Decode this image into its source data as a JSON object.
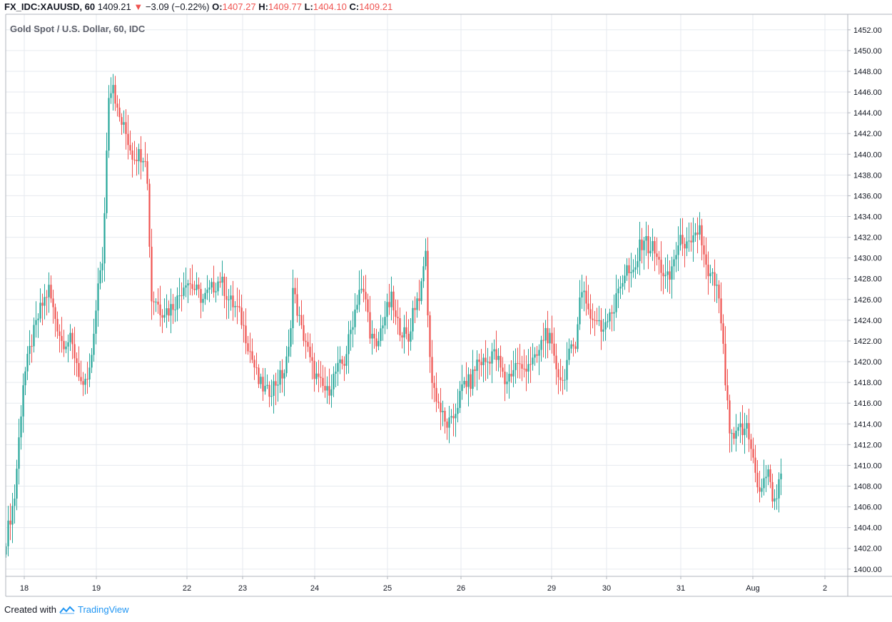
{
  "header": {
    "symbol": "FX_IDC:XAUUSD, 60",
    "last": "1409.21",
    "change": "−3.09 (−0.22%)",
    "o_label": "O:",
    "o_value": "1407.27",
    "h_label": "H:",
    "h_value": "1409.77",
    "l_label": "L:",
    "l_value": "1404.10",
    "c_label": "C:",
    "c_value": "1409.21",
    "down_color": "#ef5350"
  },
  "chart_title": "Gold Spot / U.S. Dollar, 60, IDC",
  "footer": {
    "created_with": "Created with",
    "brand": "TradingView"
  },
  "colors": {
    "up": "#26a69a",
    "down": "#ef5350",
    "grid": "#e6eaef",
    "axis_text": "#131722"
  },
  "chart_data": {
    "type": "candlestick",
    "x_axis_labels": [
      "18",
      "19",
      "22",
      "23",
      "24",
      "25",
      "26",
      "29",
      "30",
      "31",
      "Aug",
      "2"
    ],
    "y_tick_labels": [
      "1400.00",
      "1402.00",
      "1404.00",
      "1406.00",
      "1408.00",
      "1410.00",
      "1412.00",
      "1414.00",
      "1416.00",
      "1418.00",
      "1420.00",
      "1422.00",
      "1424.00",
      "1426.00",
      "1428.00",
      "1430.00",
      "1432.00",
      "1434.00",
      "1436.00",
      "1438.00",
      "1440.00",
      "1442.00",
      "1444.00",
      "1446.00",
      "1448.00",
      "1450.00",
      "1452.00"
    ],
    "ylim": [
      1399.3,
      1453.5
    ],
    "bars_up_to_index": 362,
    "price_path": [
      [
        0,
        1403
      ],
      [
        4,
        1407
      ],
      [
        8,
        1418
      ],
      [
        12,
        1422
      ],
      [
        16,
        1425
      ],
      [
        18,
        1426
      ],
      [
        20,
        1427
      ],
      [
        22,
        1425
      ],
      [
        26,
        1422
      ],
      [
        30,
        1422
      ],
      [
        33,
        1420
      ],
      [
        36,
        1417
      ],
      [
        39,
        1419
      ],
      [
        41,
        1422
      ],
      [
        43,
        1428
      ],
      [
        45,
        1429
      ],
      [
        48,
        1446
      ],
      [
        50,
        1447
      ],
      [
        52,
        1444
      ],
      [
        56,
        1442
      ],
      [
        59,
        1440
      ],
      [
        62,
        1440
      ],
      [
        65,
        1440
      ],
      [
        66,
        1437
      ],
      [
        68,
        1426
      ],
      [
        70,
        1426
      ],
      [
        72,
        1425
      ],
      [
        76,
        1425
      ],
      [
        80,
        1426
      ],
      [
        84,
        1428
      ],
      [
        88,
        1427
      ],
      [
        92,
        1426
      ],
      [
        96,
        1427
      ],
      [
        100,
        1428
      ],
      [
        104,
        1426
      ],
      [
        108,
        1425
      ],
      [
        110,
        1424
      ],
      [
        114,
        1421
      ],
      [
        118,
        1418
      ],
      [
        122,
        1417
      ],
      [
        126,
        1418
      ],
      [
        130,
        1419
      ],
      [
        132,
        1421
      ],
      [
        134,
        1427
      ],
      [
        136,
        1425
      ],
      [
        138,
        1423
      ],
      [
        140,
        1422
      ],
      [
        142,
        1420
      ],
      [
        146,
        1418
      ],
      [
        150,
        1417
      ],
      [
        154,
        1419
      ],
      [
        158,
        1420
      ],
      [
        160,
        1422
      ],
      [
        162,
        1424
      ],
      [
        165,
        1427
      ],
      [
        168,
        1426
      ],
      [
        170,
        1423
      ],
      [
        173,
        1421
      ],
      [
        176,
        1424
      ],
      [
        178,
        1425
      ],
      [
        180,
        1426
      ],
      [
        182,
        1424
      ],
      [
        185,
        1423
      ],
      [
        188,
        1422
      ],
      [
        190,
        1425
      ],
      [
        192,
        1426
      ],
      [
        194,
        1427
      ],
      [
        196,
        1431
      ],
      [
        197,
        1424
      ],
      [
        199,
        1418
      ],
      [
        202,
        1416
      ],
      [
        205,
        1414
      ],
      [
        208,
        1414
      ],
      [
        211,
        1416
      ],
      [
        214,
        1418
      ],
      [
        217,
        1418
      ],
      [
        220,
        1420
      ],
      [
        222,
        1420
      ],
      [
        225,
        1420
      ],
      [
        227,
        1421
      ],
      [
        230,
        1420
      ],
      [
        233,
        1418
      ],
      [
        236,
        1419
      ],
      [
        239,
        1420
      ],
      [
        241,
        1419
      ],
      [
        244,
        1420
      ],
      [
        247,
        1420
      ],
      [
        249,
        1421
      ],
      [
        252,
        1423
      ],
      [
        254,
        1422
      ],
      [
        256,
        1420
      ],
      [
        258,
        1419
      ],
      [
        260,
        1418
      ],
      [
        262,
        1420
      ],
      [
        264,
        1421
      ],
      [
        266,
        1422
      ],
      [
        268,
        1426
      ],
      [
        270,
        1427
      ],
      [
        272,
        1425
      ],
      [
        274,
        1424
      ],
      [
        276,
        1424
      ],
      [
        278,
        1423
      ],
      [
        280,
        1424
      ],
      [
        282,
        1425
      ],
      [
        284,
        1425
      ],
      [
        286,
        1427
      ],
      [
        288,
        1428
      ],
      [
        290,
        1429
      ],
      [
        292,
        1428
      ],
      [
        294,
        1429
      ],
      [
        296,
        1431
      ],
      [
        298,
        1432
      ],
      [
        300,
        1431
      ],
      [
        302,
        1431
      ],
      [
        304,
        1430
      ],
      [
        306,
        1429
      ],
      [
        308,
        1428
      ],
      [
        310,
        1428
      ],
      [
        312,
        1430
      ],
      [
        314,
        1431
      ],
      [
        316,
        1432
      ],
      [
        318,
        1431
      ],
      [
        320,
        1431
      ],
      [
        322,
        1432
      ],
      [
        324,
        1433
      ],
      [
        326,
        1430
      ],
      [
        328,
        1428
      ],
      [
        330,
        1428
      ],
      [
        332,
        1427
      ],
      [
        334,
        1424
      ],
      [
        336,
        1418
      ],
      [
        338,
        1413
      ],
      [
        340,
        1412
      ],
      [
        342,
        1414
      ],
      [
        344,
        1413
      ],
      [
        346,
        1414
      ],
      [
        348,
        1412
      ],
      [
        350,
        1409
      ],
      [
        352,
        1407
      ],
      [
        354,
        1409
      ],
      [
        356,
        1409
      ],
      [
        358,
        1407
      ],
      [
        360,
        1407
      ],
      [
        362,
        1409.21
      ]
    ]
  }
}
